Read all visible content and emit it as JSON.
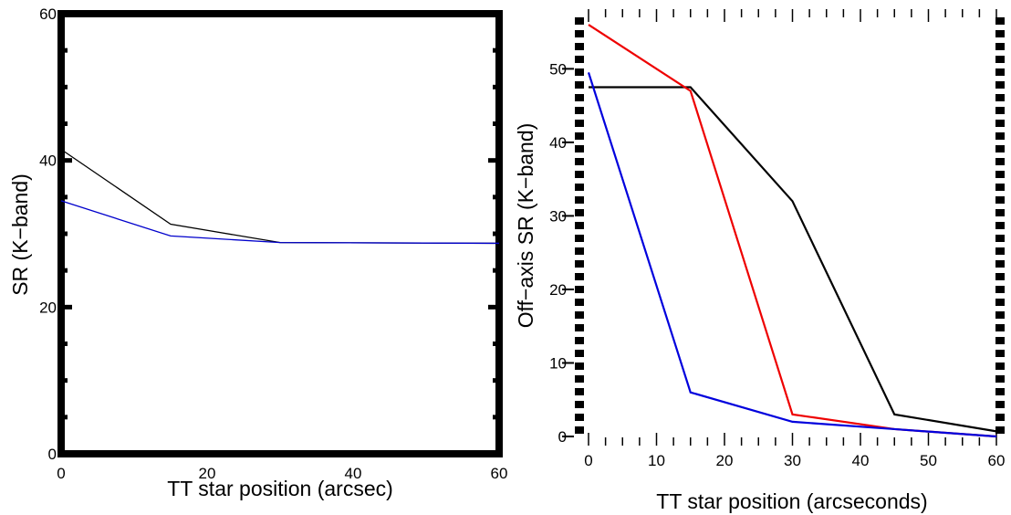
{
  "chart_data": [
    {
      "type": "line",
      "xlabel": "TT star position (arcsec)",
      "ylabel": "SR (K−band)",
      "xlim": [
        0,
        60
      ],
      "ylim": [
        0,
        60
      ],
      "xticks": [
        0,
        20,
        40,
        60
      ],
      "xtick_labels": [
        "0",
        "20",
        "40",
        "60"
      ],
      "yticks": [
        0,
        20,
        40,
        60
      ],
      "ytick_labels": [
        "0",
        "20",
        "40",
        "60"
      ],
      "grid": false,
      "series": [
        {
          "color": "#000000",
          "x": [
            0,
            15,
            30,
            60
          ],
          "y": [
            41.5,
            31.3,
            28.8,
            28.7
          ]
        },
        {
          "color": "#0000cc",
          "x": [
            0,
            15,
            30,
            60
          ],
          "y": [
            34.5,
            29.7,
            28.8,
            28.7
          ]
        }
      ]
    },
    {
      "type": "line",
      "xlabel": "TT star position (arcseconds)",
      "ylabel": "Off−axis SR (K−band)",
      "xlim": [
        0,
        60
      ],
      "ylim": [
        0,
        57
      ],
      "xticks": [
        0,
        10,
        20,
        30,
        40,
        50,
        60
      ],
      "xtick_labels": [
        "0",
        "10",
        "20",
        "30",
        "40",
        "50",
        "60"
      ],
      "yticks": [
        0,
        10,
        20,
        30,
        40,
        50
      ],
      "ytick_labels": [
        "0",
        "10",
        "20",
        "30",
        "40",
        "50"
      ],
      "grid": false,
      "series": [
        {
          "color": "#000000",
          "x": [
            0,
            15,
            30,
            45,
            60
          ],
          "y": [
            47.5,
            47.5,
            32,
            3,
            0.7
          ]
        },
        {
          "color": "#ee0000",
          "x": [
            0,
            15,
            30,
            45,
            60
          ],
          "y": [
            56,
            47,
            3,
            1,
            0
          ]
        },
        {
          "color": "#0000dd",
          "x": [
            0,
            15,
            30,
            45,
            60
          ],
          "y": [
            49.5,
            6,
            2,
            1,
            0
          ]
        }
      ]
    }
  ]
}
